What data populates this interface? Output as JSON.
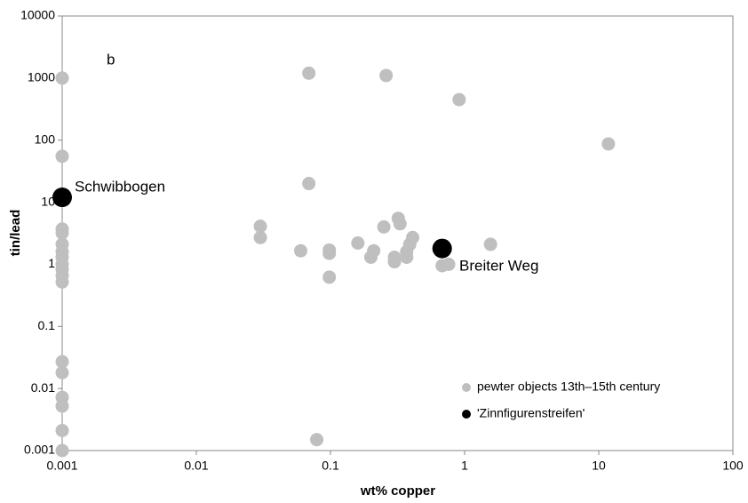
{
  "chart_data": {
    "type": "scatter",
    "xlabel": "wt% copper",
    "ylabel": "tin/lead",
    "annotations": [
      "b",
      "Schwibbogen",
      "Breiter Weg"
    ],
    "xscale": "log",
    "yscale": "log",
    "xlim": [
      0.001,
      100
    ],
    "ylim": [
      0.001,
      10000
    ],
    "xticks": [
      0.001,
      0.01,
      0.1,
      1,
      10,
      100
    ],
    "yticks": [
      0.001,
      0.01,
      0.1,
      1,
      10,
      100,
      1000,
      10000
    ],
    "legend": "lower right",
    "series": [
      {
        "name": "pewter objects 13th–15th century",
        "color": "#bfbfbf",
        "x": [
          0.001,
          0.001,
          0.001,
          0.001,
          0.001,
          0.001,
          0.001,
          0.001,
          0.001,
          0.001,
          0.001,
          0.001,
          0.001,
          0.001,
          0.001,
          0.001,
          0.001,
          0.069,
          0.26,
          0.91,
          11.8,
          0.069,
          0.03,
          0.03,
          0.06,
          0.098,
          0.098,
          0.098,
          0.16,
          0.2,
          0.21,
          0.25,
          0.32,
          0.33,
          0.3,
          0.3,
          0.37,
          0.37,
          0.39,
          0.41,
          0.68,
          0.76,
          1.56,
          0.079
        ],
        "y": [
          1000,
          55,
          3.7,
          3.2,
          2.1,
          1.6,
          1.3,
          1.0,
          0.83,
          0.66,
          0.52,
          0.027,
          0.018,
          0.0072,
          0.0052,
          0.0021,
          0.001,
          1200,
          1100,
          450,
          87,
          20,
          4.1,
          2.7,
          1.65,
          1.7,
          1.5,
          0.62,
          2.2,
          1.3,
          1.65,
          4,
          5.5,
          4.5,
          1.3,
          1.1,
          1.6,
          1.3,
          2.1,
          2.7,
          0.95,
          1.0,
          2.1,
          0.0015
        ]
      },
      {
        "name": "'Zinnfigurenstreifen'",
        "color": "#000000",
        "x": [
          0.001,
          0.68
        ],
        "y": [
          12,
          1.8
        ]
      }
    ]
  }
}
